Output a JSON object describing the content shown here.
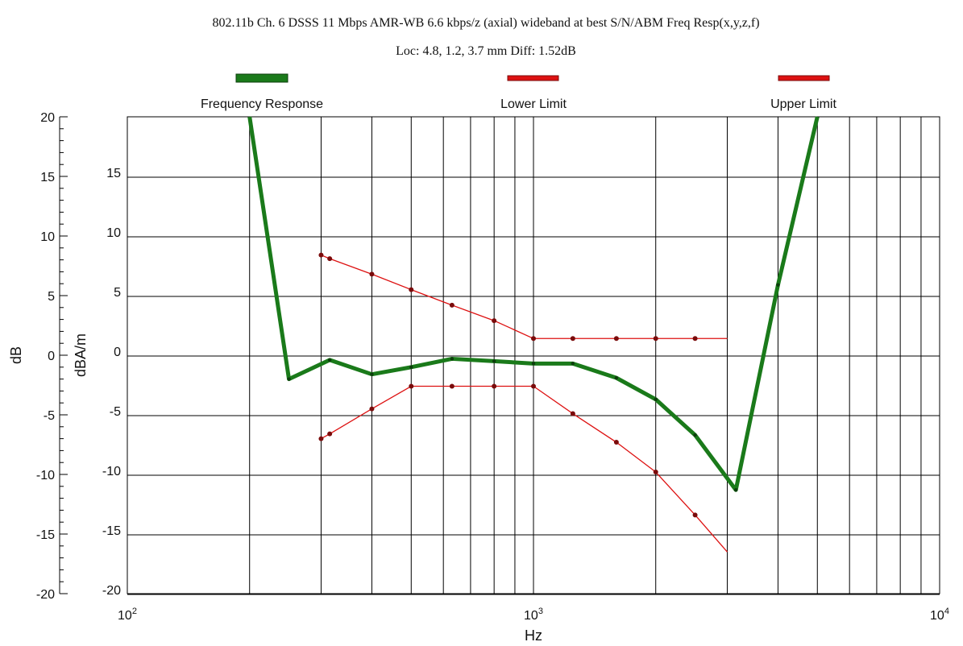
{
  "chart_data": {
    "type": "line",
    "title": "802.11b Ch. 6 DSSS 11 Mbps AMR-WB 6.6 kbps/z (axial) wideband at best S/N/ABM Freq Resp(x,y,z,f)",
    "subtitle": "Loc: 4.8, 1.2, 3.7 mm Diff: 1.52dB",
    "xlabel": "Hz",
    "ylabel_outer": "dB",
    "ylabel_inner": "dBA/m",
    "x_scale": "log",
    "xlim": [
      100,
      10000
    ],
    "ylim": [
      -20,
      20
    ],
    "x_tick_labels": [
      {
        "value": 100,
        "base": "10",
        "exp": "2"
      },
      {
        "value": 1000,
        "base": "10",
        "exp": "3"
      },
      {
        "value": 10000,
        "base": "10",
        "exp": "4"
      }
    ],
    "y_outer_ticks": [
      20,
      15,
      10,
      5,
      0,
      -5,
      -10,
      -15,
      -20
    ],
    "y_outer_tick_labels": [
      "20",
      "15",
      "10",
      "5",
      "0",
      "-5",
      "-10",
      "-15",
      "-20"
    ],
    "y_inner_ticks": [
      15,
      10,
      5,
      0,
      -5,
      -10,
      -15,
      -20
    ],
    "y_inner_tick_labels": [
      "15",
      "10",
      "5",
      "0",
      "-5",
      "-10",
      "-15",
      "-20"
    ],
    "vertical_grid_hz": [
      200,
      300,
      400,
      500,
      600,
      700,
      800,
      900,
      1000,
      2000,
      3000,
      4000,
      5000,
      6000,
      7000,
      8000,
      9000
    ],
    "grid": true,
    "legend_position": "top",
    "series": [
      {
        "name": "Frequency Response",
        "color": "#1a7a1a",
        "x": [
          200,
          250,
          315,
          400,
          500,
          630,
          800,
          1000,
          1250,
          1600,
          2000,
          2500,
          3150,
          4000,
          5000
        ],
        "y": [
          20.5,
          -2.0,
          -0.4,
          -1.6,
          -1.0,
          -0.3,
          -0.5,
          -0.7,
          -0.7,
          -1.9,
          -3.7,
          -6.7,
          -11.3,
          5.9,
          20.5
        ]
      },
      {
        "name": "Lower Limit",
        "color": "#dd1111",
        "x": [
          300,
          315,
          400,
          500,
          630,
          800,
          1000,
          1250,
          1600,
          2000,
          2500,
          3000
        ],
        "y": [
          -7.0,
          -6.6,
          -4.5,
          -2.6,
          -2.6,
          -2.6,
          -2.6,
          -4.9,
          -7.3,
          -9.8,
          -13.4,
          -16.5
        ]
      },
      {
        "name": "Upper Limit",
        "color": "#dd1111",
        "x": [
          300,
          315,
          400,
          500,
          630,
          800,
          1000,
          1250,
          1600,
          2000,
          2500,
          3000
        ],
        "y": [
          8.4,
          8.1,
          6.8,
          5.5,
          4.2,
          2.9,
          1.4,
          1.4,
          1.4,
          1.4,
          1.4,
          1.4
        ]
      }
    ]
  }
}
